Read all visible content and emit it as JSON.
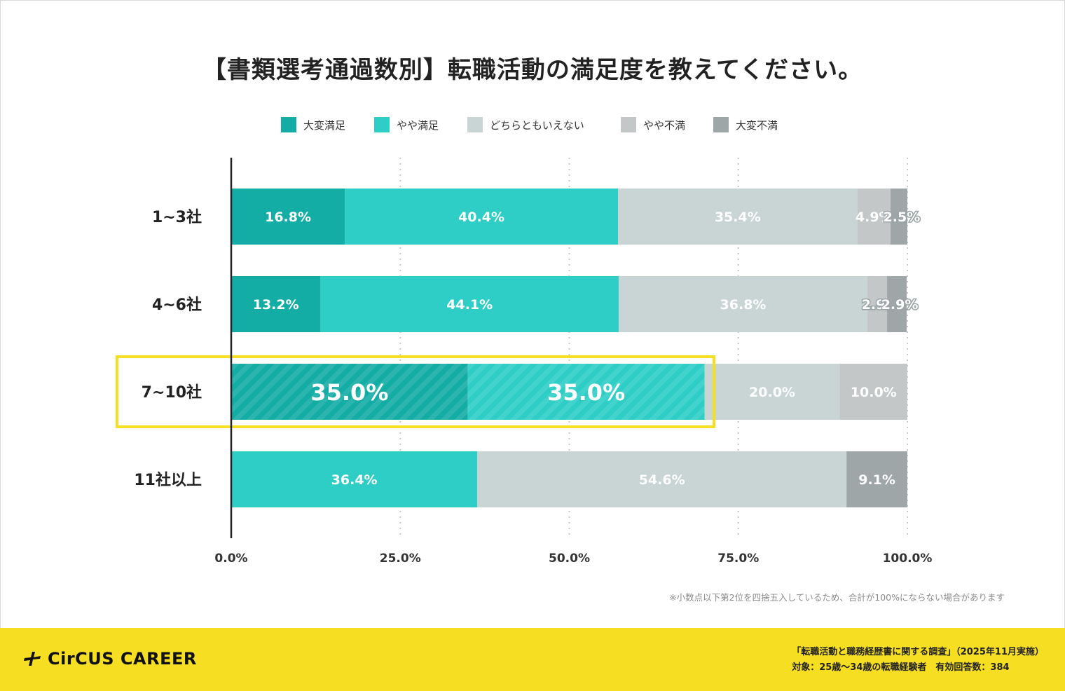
{
  "title": "【書類選考通過数別】転職活動の満足度を教えてください。",
  "legend": [
    {
      "label": "大変満足",
      "color": "#13ada5"
    },
    {
      "label": "やや満足",
      "color": "#2ecec7"
    },
    {
      "label": "どちらともいえない",
      "color": "#c9d5d5"
    },
    {
      "label": "やや不満",
      "color": "#c3c7c7"
    },
    {
      "label": "大変不満",
      "color": "#9ea6a8"
    }
  ],
  "chart_data": {
    "type": "bar",
    "orientation": "horizontal",
    "stacked": true,
    "categories": [
      "1~3社",
      "4~6社",
      "7~10社",
      "11社以上"
    ],
    "series": [
      {
        "name": "大変満足",
        "color": "#13ada5",
        "values": [
          16.8,
          13.2,
          35.0,
          0
        ]
      },
      {
        "name": "やや満足",
        "color": "#2ecec7",
        "values": [
          40.4,
          44.1,
          35.0,
          36.4
        ]
      },
      {
        "name": "どちらともいえない",
        "color": "#c9d5d5",
        "values": [
          35.4,
          36.8,
          20.0,
          54.6
        ]
      },
      {
        "name": "やや不満",
        "color": "#c3c7c7",
        "values": [
          4.9,
          2.9,
          10.0,
          0
        ]
      },
      {
        "name": "大変不満",
        "color": "#9ea6a8",
        "values": [
          2.5,
          2.9,
          0,
          9.1
        ]
      }
    ],
    "x_ticks": [
      "0.0%",
      "25.0%",
      "50.0%",
      "75.0%",
      "100.0%"
    ],
    "xlim": [
      0,
      100
    ],
    "grid": true,
    "highlight_category": "7~10社",
    "highlight_color": "#f6de22"
  },
  "note": "※小数点以下第2位を四捨五入しているため、合計が100%にならない場合があります",
  "footer": {
    "brand": "CirCUS CAREER",
    "survey_line1": "「転職活動と職務経歴書に関する調査」（2025年11月実施）",
    "survey_line2": "対象：25歳〜34歳の転職経験者　有効回答数：384"
  }
}
